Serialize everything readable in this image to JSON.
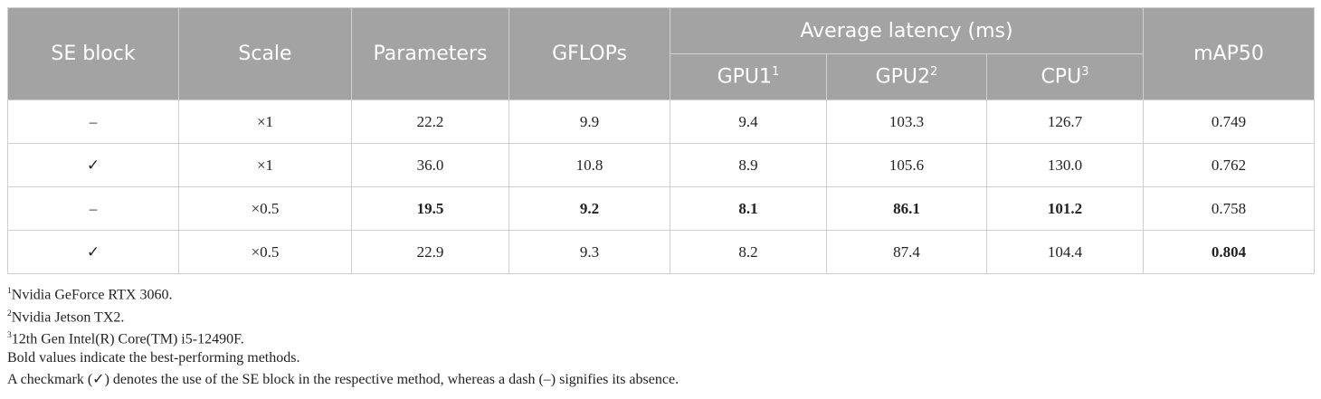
{
  "table": {
    "headers": [
      "SE block",
      "Scale",
      "Parameters",
      "GFLOPs",
      "Average latency (ms)",
      "mAP50"
    ],
    "subheaders": [
      {
        "text": "GPU1",
        "sup": "1"
      },
      {
        "text": "GPU2",
        "sup": "2"
      },
      {
        "text": "CPU",
        "sup": "3"
      }
    ],
    "rows": [
      [
        {
          "text": "–"
        },
        {
          "text": "×1"
        },
        {
          "text": "22.2"
        },
        {
          "text": "9.9"
        },
        {
          "text": "9.4"
        },
        {
          "text": "103.3"
        },
        {
          "text": "126.7"
        },
        {
          "text": "0.749"
        }
      ],
      [
        {
          "text": "✓"
        },
        {
          "text": "×1"
        },
        {
          "text": "36.0"
        },
        {
          "text": "10.8"
        },
        {
          "text": "8.9"
        },
        {
          "text": "105.6"
        },
        {
          "text": "130.0"
        },
        {
          "text": "0.762"
        }
      ],
      [
        {
          "text": "–"
        },
        {
          "text": "×0.5"
        },
        {
          "text": "19.5",
          "bold": true
        },
        {
          "text": "9.2",
          "bold": true
        },
        {
          "text": "8.1",
          "bold": true
        },
        {
          "text": "86.1",
          "bold": true
        },
        {
          "text": "101.2",
          "bold": true
        },
        {
          "text": "0.758"
        }
      ],
      [
        {
          "text": "✓"
        },
        {
          "text": "×0.5"
        },
        {
          "text": "22.9"
        },
        {
          "text": "9.3"
        },
        {
          "text": "8.2"
        },
        {
          "text": "87.4"
        },
        {
          "text": "104.4"
        },
        {
          "text": "0.804",
          "bold": true
        }
      ]
    ]
  },
  "notes": [
    {
      "sup": "1",
      "text": "Nvidia GeForce RTX 3060."
    },
    {
      "sup": "2",
      "text": "Nvidia Jetson TX2."
    },
    {
      "sup": "3",
      "text": "12th Gen Intel(R) Core(TM) i5-12490F."
    },
    {
      "text": "Bold values indicate the best-performing methods."
    },
    {
      "text": "A checkmark (✓) denotes the use of the SE block in the respective method, whereas a dash (–) signifies its absence."
    }
  ]
}
